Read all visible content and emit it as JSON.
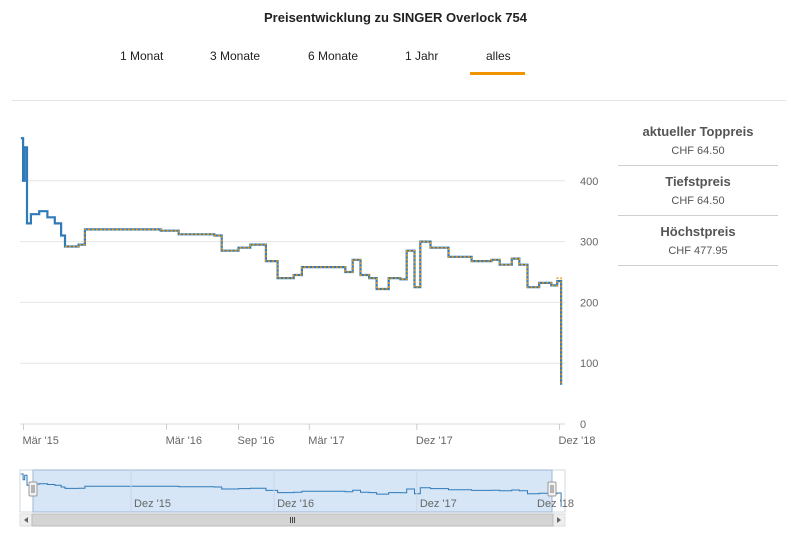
{
  "title": "Preisentwicklung zu SINGER Overlock 754",
  "tabs": [
    {
      "label": "1 Monat"
    },
    {
      "label": "3 Monate"
    },
    {
      "label": "6 Monate"
    },
    {
      "label": "1 Jahr"
    },
    {
      "label": "alles",
      "active": true
    }
  ],
  "colors": {
    "accent": "#f29400",
    "line_blue": "#2f7ab8",
    "line_orange": "#f29400",
    "navigator_fill": "#d6e6f7"
  },
  "sidebar": {
    "top_price": {
      "label": "aktueller Toppreis",
      "value": "CHF 64.50"
    },
    "lowest": {
      "label": "Tiefstpreis",
      "value": "CHF 64.50"
    },
    "highest": {
      "label": "Höchstpreis",
      "value": "CHF 477.95"
    }
  },
  "chart_data": {
    "type": "line",
    "title": "Preisentwicklung zu SINGER Overlock 754",
    "ylim": [
      0,
      500
    ],
    "yticks": [
      0,
      100,
      200,
      300,
      400
    ],
    "ytick_labels": [
      "0",
      "100",
      "200",
      "300",
      "400"
    ],
    "xticks": [
      {
        "date": "2015-03-01",
        "label": "Mär '15"
      },
      {
        "date": "2016-03-01",
        "label": "Mär '16"
      },
      {
        "date": "2016-09-01",
        "label": "Sep '16"
      },
      {
        "date": "2017-03-01",
        "label": "Mär '17"
      },
      {
        "date": "2017-12-01",
        "label": "Dez '17"
      },
      {
        "date": "2018-12-01",
        "label": "Dez '18"
      }
    ],
    "xlim": [
      "2015-02-20",
      "2018-12-15"
    ],
    "series": [
      {
        "color": "#2f7ab8",
        "points": [
          [
            "2015-02-22",
            470
          ],
          [
            "2015-02-28",
            400
          ],
          [
            "2015-03-04",
            455
          ],
          [
            "2015-03-10",
            330
          ],
          [
            "2015-03-20",
            345
          ],
          [
            "2015-04-10",
            350
          ],
          [
            "2015-05-01",
            340
          ],
          [
            "2015-05-20",
            330
          ],
          [
            "2015-06-05",
            310
          ],
          [
            "2015-06-15",
            292
          ],
          [
            "2015-07-20",
            295
          ],
          [
            "2015-08-05",
            320
          ],
          [
            "2016-02-15",
            318
          ],
          [
            "2016-04-01",
            312
          ],
          [
            "2016-07-01",
            310
          ],
          [
            "2016-07-20",
            285
          ],
          [
            "2016-09-01",
            290
          ],
          [
            "2016-10-01",
            295
          ],
          [
            "2016-11-10",
            268
          ],
          [
            "2016-12-10",
            240
          ],
          [
            "2017-01-20",
            245
          ],
          [
            "2017-02-10",
            258
          ],
          [
            "2017-04-01",
            258
          ],
          [
            "2017-06-01",
            250
          ],
          [
            "2017-06-20",
            270
          ],
          [
            "2017-07-10",
            245
          ],
          [
            "2017-08-01",
            240
          ],
          [
            "2017-08-20",
            222
          ],
          [
            "2017-09-20",
            240
          ],
          [
            "2017-10-20",
            238
          ],
          [
            "2017-11-05",
            285
          ],
          [
            "2017-11-25",
            225
          ],
          [
            "2017-12-10",
            300
          ],
          [
            "2018-01-05",
            290
          ],
          [
            "2018-02-20",
            275
          ],
          [
            "2018-04-20",
            268
          ],
          [
            "2018-06-10",
            270
          ],
          [
            "2018-07-01",
            262
          ],
          [
            "2018-08-01",
            272
          ],
          [
            "2018-08-20",
            262
          ],
          [
            "2018-09-10",
            225
          ],
          [
            "2018-10-10",
            232
          ],
          [
            "2018-11-10",
            228
          ],
          [
            "2018-11-25",
            235
          ],
          [
            "2018-12-05",
            64.5
          ]
        ]
      },
      {
        "color": "#f29400",
        "points": [
          [
            "2015-06-15",
            292
          ],
          [
            "2015-07-20",
            295
          ],
          [
            "2015-08-05",
            320
          ],
          [
            "2016-02-15",
            318
          ],
          [
            "2016-04-01",
            312
          ],
          [
            "2016-07-01",
            310
          ],
          [
            "2016-07-20",
            285
          ],
          [
            "2016-09-01",
            290
          ],
          [
            "2016-10-01",
            295
          ],
          [
            "2016-11-10",
            268
          ],
          [
            "2016-12-10",
            240
          ],
          [
            "2017-01-20",
            245
          ],
          [
            "2017-02-10",
            258
          ],
          [
            "2017-04-01",
            258
          ],
          [
            "2017-06-01",
            250
          ],
          [
            "2017-06-20",
            270
          ],
          [
            "2017-07-10",
            245
          ],
          [
            "2017-08-01",
            240
          ],
          [
            "2017-08-20",
            222
          ],
          [
            "2017-09-20",
            240
          ],
          [
            "2017-10-20",
            238
          ],
          [
            "2017-11-05",
            285
          ],
          [
            "2017-11-25",
            225
          ],
          [
            "2017-12-10",
            300
          ],
          [
            "2018-01-05",
            290
          ],
          [
            "2018-02-20",
            275
          ],
          [
            "2018-04-20",
            268
          ],
          [
            "2018-06-10",
            270
          ],
          [
            "2018-07-01",
            262
          ],
          [
            "2018-08-01",
            272
          ],
          [
            "2018-08-20",
            262
          ],
          [
            "2018-09-10",
            225
          ],
          [
            "2018-10-10",
            232
          ],
          [
            "2018-11-10",
            228
          ],
          [
            "2018-11-25",
            240
          ],
          [
            "2018-12-05",
            64.5
          ]
        ]
      }
    ],
    "navigator": {
      "xticks": [
        {
          "date": "2015-12-01",
          "label": "Dez '15"
        },
        {
          "date": "2016-12-01",
          "label": "Dez '16"
        },
        {
          "date": "2017-12-01",
          "label": "Dez '17"
        }
      ],
      "xlim": [
        "2015-02-20",
        "2018-12-15"
      ]
    },
    "grid": true
  }
}
